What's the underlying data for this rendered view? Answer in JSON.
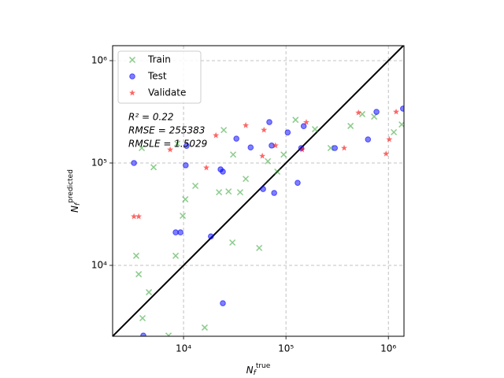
{
  "chart_data": {
    "type": "scatter",
    "xlabel": {
      "symbol": "N",
      "subscript": "f",
      "superscript": "true"
    },
    "ylabel": {
      "symbol": "N",
      "subscript": "f",
      "superscript": "predicted"
    },
    "annotations": [
      "R² = 0.22",
      "RMSE = 255383",
      "RMSLE = 1.5029"
    ],
    "log_x": true,
    "log_y": true,
    "grid": true,
    "diagonal": true,
    "legend": "upper left",
    "xlim": [
      2030,
      1420000
    ],
    "ylim": [
      2030,
      1400000
    ],
    "xticks": [
      {
        "value": 10000,
        "label": "10⁴"
      },
      {
        "value": 100000,
        "label": "10⁵"
      },
      {
        "value": 1000000,
        "label": "10⁶"
      }
    ],
    "yticks": [
      {
        "value": 10000,
        "label": "10⁴"
      },
      {
        "value": 100000,
        "label": "10⁵"
      },
      {
        "value": 1000000,
        "label": "10⁶"
      }
    ],
    "series": [
      {
        "name": "Train",
        "color": "#2ca02c",
        "marker": "x",
        "x": [
          3450,
          3650,
          3980,
          4590,
          7140,
          8380,
          9820,
          10400,
          16100,
          30000,
          54800,
          3910,
          5100,
          8680,
          13040,
          22200,
          27500,
          35700,
          40500,
          66600,
          94900,
          124000,
          192000,
          273000,
          427000,
          726000,
          1130000,
          1350000,
          556000,
          24700,
          30500,
          82300
        ],
        "values": [
          12400,
          8200,
          3050,
          5470,
          2060,
          12400,
          30500,
          44200,
          2470,
          16700,
          14800,
          140000,
          91000,
          155000,
          59800,
          51800,
          52700,
          51800,
          70000,
          104000,
          121000,
          264000,
          214000,
          140000,
          230000,
          284000,
          200000,
          238000,
          300000,
          210000,
          121000,
          82300
        ]
      },
      {
        "name": "Test",
        "color": "#0000ff",
        "marker": "o",
        "x": [
          3280,
          8380,
          9330,
          10500,
          18500,
          24200,
          4050,
          10700,
          23000,
          24200,
          32800,
          45200,
          59800,
          76700,
          68800,
          72500,
          130000,
          149000,
          300000,
          632000,
          765000,
          1390000,
          104000,
          141000
        ],
        "values": [
          100000,
          21000,
          21000,
          95000,
          19200,
          4270,
          2060,
          147000,
          86600,
          82300,
          173000,
          142000,
          55700,
          51000,
          251000,
          148000,
          64000,
          229000,
          140000,
          170000,
          316000,
          340000,
          199000,
          140000
        ]
      },
      {
        "name": "Validate",
        "color": "#ff0000",
        "marker": "*",
        "x": [
          3280,
          3650,
          7400,
          16700,
          20700,
          40500,
          58800,
          61000,
          79000,
          144000,
          158000,
          370000,
          510000,
          949000,
          1020000,
          1190000
        ],
        "values": [
          30000,
          30000,
          135000,
          90000,
          186000,
          233000,
          117000,
          210000,
          148000,
          135000,
          250000,
          140000,
          310000,
          123000,
          170000,
          316000
        ]
      }
    ]
  }
}
